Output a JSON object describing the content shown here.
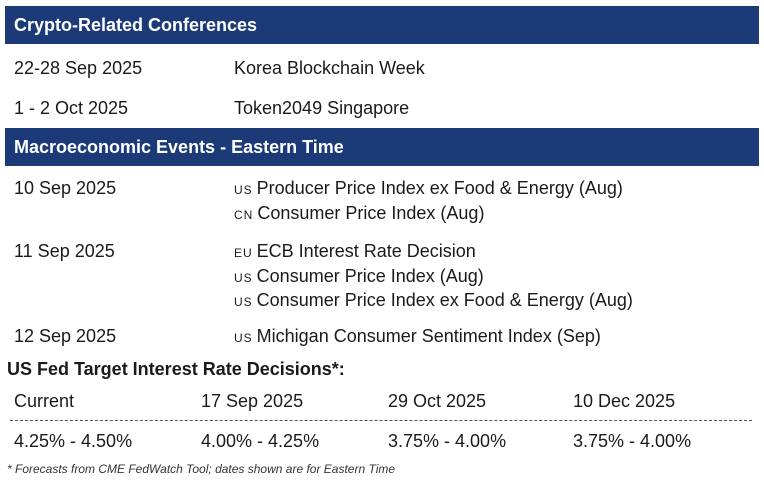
{
  "conferences": {
    "heading": "Crypto-Related Conferences",
    "rows": [
      {
        "date": "22-28 Sep 2025",
        "name": "Korea Blockchain Week"
      },
      {
        "date": "1 - 2 Oct 2025",
        "name": "Token2049 Singapore"
      }
    ]
  },
  "macro": {
    "heading": "Macroeconomic Events - Eastern Time",
    "groups": [
      {
        "date": "10 Sep 2025",
        "events": [
          {
            "country": "US",
            "name": "Producer Price Index ex Food & Energy (Aug)"
          },
          {
            "country": "CN",
            "name": "Consumer Price Index (Aug)"
          }
        ]
      },
      {
        "date": "11 Sep 2025",
        "events": [
          {
            "country": "EU",
            "name": "ECB Interest Rate Decision"
          },
          {
            "country": "US",
            "name": "Consumer Price Index (Aug)"
          },
          {
            "country": "US",
            "name": "Consumer Price Index ex Food & Energy (Aug)"
          }
        ]
      },
      {
        "date": "12 Sep 2025",
        "events": [
          {
            "country": "US",
            "name": "Michigan Consumer Sentiment Index (Sep)"
          }
        ]
      }
    ]
  },
  "fed": {
    "title": "US Fed Target Interest Rate Decisions*:",
    "headers": [
      "Current",
      "17 Sep 2025",
      "29 Oct 2025",
      "10 Dec 2025"
    ],
    "values": [
      "4.25% - 4.50%",
      "4.00% - 4.25%",
      "3.75% - 4.00%",
      "3.75% - 4.00%"
    ]
  },
  "footnote": "* Forecasts from CME FedWatch Tool; dates shown are for Eastern Time",
  "colors": {
    "header_band": "#1c3a78",
    "header_text": "#ffffff"
  }
}
